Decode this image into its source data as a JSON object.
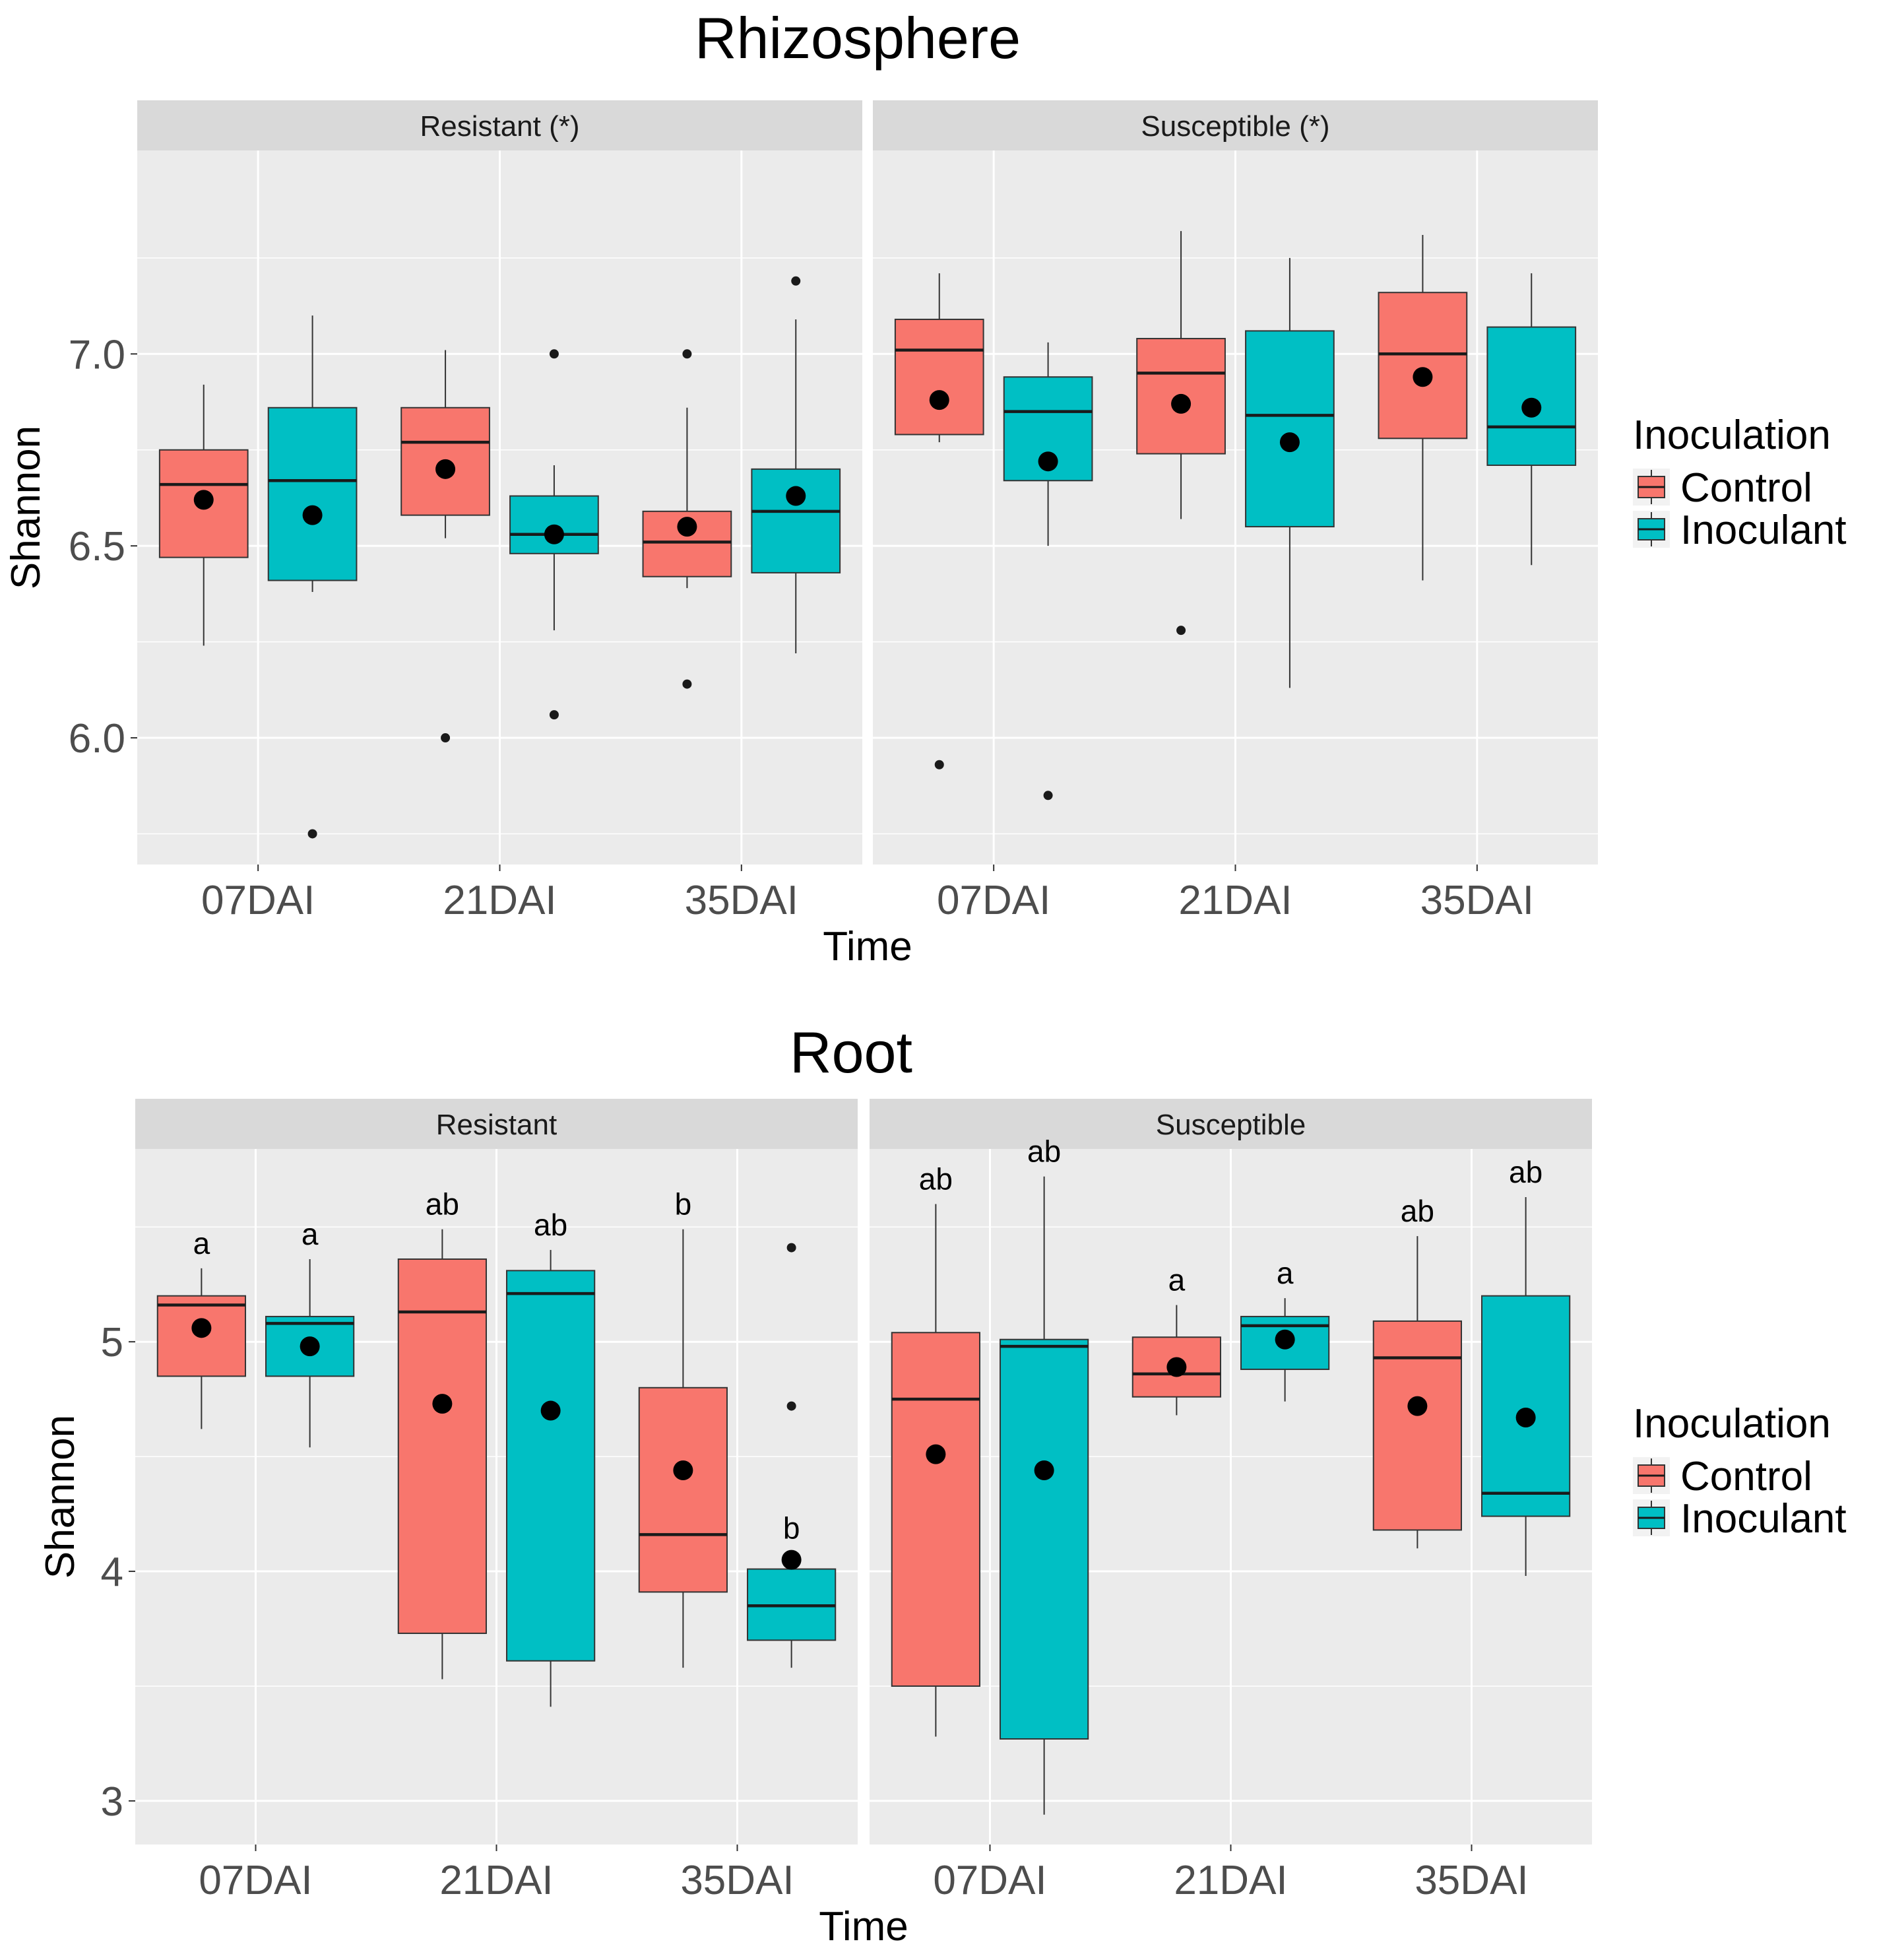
{
  "colors": {
    "Control": "#F8766D",
    "Inoculant": "#00BFC4",
    "panel_bg": "#EBEBEB",
    "strip_bg": "#D9D9D9"
  },
  "legend": {
    "title": "Inoculation",
    "items": [
      "Control",
      "Inoculant"
    ]
  },
  "chart_data": [
    {
      "type": "box",
      "title": "Rhizosphere",
      "xlabel": "Time",
      "ylabel": "Shannon",
      "categories": [
        "07DAI",
        "21DAI",
        "35DAI"
      ],
      "ylim": [
        5.67,
        7.53
      ],
      "yticks": [
        "6.0",
        "6.5",
        "7.0"
      ],
      "facets": [
        {
          "label": "Resistant (*)",
          "boxes": [
            {
              "time": "07DAI",
              "group": "Control",
              "whisker_low": 6.24,
              "q1": 6.47,
              "median": 6.66,
              "q3": 6.75,
              "whisker_high": 6.92,
              "mean": 6.62,
              "outliers": []
            },
            {
              "time": "07DAI",
              "group": "Inoculant",
              "whisker_low": 6.38,
              "q1": 6.41,
              "median": 6.67,
              "q3": 6.86,
              "whisker_high": 7.1,
              "mean": 6.58,
              "outliers": [
                5.75
              ]
            },
            {
              "time": "21DAI",
              "group": "Control",
              "whisker_low": 6.52,
              "q1": 6.58,
              "median": 6.77,
              "q3": 6.86,
              "whisker_high": 7.01,
              "mean": 6.7,
              "outliers": [
                6.0
              ]
            },
            {
              "time": "21DAI",
              "group": "Inoculant",
              "whisker_low": 6.28,
              "q1": 6.48,
              "median": 6.53,
              "q3": 6.63,
              "whisker_high": 6.71,
              "mean": 6.53,
              "outliers": [
                7.0,
                6.06
              ]
            },
            {
              "time": "35DAI",
              "group": "Control",
              "whisker_low": 6.39,
              "q1": 6.42,
              "median": 6.51,
              "q3": 6.59,
              "whisker_high": 6.86,
              "mean": 6.55,
              "outliers": [
                7.0,
                6.14
              ]
            },
            {
              "time": "35DAI",
              "group": "Inoculant",
              "whisker_low": 6.22,
              "q1": 6.43,
              "median": 6.59,
              "q3": 6.7,
              "whisker_high": 7.09,
              "mean": 6.63,
              "outliers": [
                7.19
              ]
            }
          ]
        },
        {
          "label": "Susceptible (*)",
          "boxes": [
            {
              "time": "07DAI",
              "group": "Control",
              "whisker_low": 6.77,
              "q1": 6.79,
              "median": 7.01,
              "q3": 7.09,
              "whisker_high": 7.21,
              "mean": 6.88,
              "outliers": [
                5.93
              ]
            },
            {
              "time": "07DAI",
              "group": "Inoculant",
              "whisker_low": 6.5,
              "q1": 6.67,
              "median": 6.85,
              "q3": 6.94,
              "whisker_high": 7.03,
              "mean": 6.72,
              "outliers": [
                5.85
              ]
            },
            {
              "time": "21DAI",
              "group": "Control",
              "whisker_low": 6.57,
              "q1": 6.74,
              "median": 6.95,
              "q3": 7.04,
              "whisker_high": 7.32,
              "mean": 6.87,
              "outliers": [
                6.28
              ]
            },
            {
              "time": "21DAI",
              "group": "Inoculant",
              "whisker_low": 6.13,
              "q1": 6.55,
              "median": 6.84,
              "q3": 7.06,
              "whisker_high": 7.25,
              "mean": 6.77,
              "outliers": []
            },
            {
              "time": "35DAI",
              "group": "Control",
              "whisker_low": 6.41,
              "q1": 6.78,
              "median": 7.0,
              "q3": 7.16,
              "whisker_high": 7.31,
              "mean": 6.94,
              "outliers": []
            },
            {
              "time": "35DAI",
              "group": "Inoculant",
              "whisker_low": 6.45,
              "q1": 6.71,
              "median": 6.81,
              "q3": 7.07,
              "whisker_high": 7.21,
              "mean": 6.86,
              "outliers": []
            }
          ]
        }
      ]
    },
    {
      "type": "box",
      "title": "Root",
      "xlabel": "Time",
      "ylabel": "Shannon",
      "categories": [
        "07DAI",
        "21DAI",
        "35DAI"
      ],
      "ylim": [
        2.81,
        5.84
      ],
      "yticks": [
        "3",
        "4",
        "5"
      ],
      "facets": [
        {
          "label": "Resistant",
          "boxes": [
            {
              "time": "07DAI",
              "group": "Control",
              "whisker_low": 4.62,
              "q1": 4.85,
              "median": 5.16,
              "q3": 5.2,
              "whisker_high": 5.32,
              "mean": 5.06,
              "outliers": [],
              "letter": "a"
            },
            {
              "time": "07DAI",
              "group": "Inoculant",
              "whisker_low": 4.54,
              "q1": 4.85,
              "median": 5.08,
              "q3": 5.11,
              "whisker_high": 5.36,
              "mean": 4.98,
              "outliers": [],
              "letter": "a"
            },
            {
              "time": "21DAI",
              "group": "Control",
              "whisker_low": 3.53,
              "q1": 3.73,
              "median": 5.13,
              "q3": 5.36,
              "whisker_high": 5.49,
              "mean": 4.73,
              "outliers": [],
              "letter": "ab"
            },
            {
              "time": "21DAI",
              "group": "Inoculant",
              "whisker_low": 3.41,
              "q1": 3.61,
              "median": 5.21,
              "q3": 5.31,
              "whisker_high": 5.4,
              "mean": 4.7,
              "outliers": [],
              "letter": "ab"
            },
            {
              "time": "35DAI",
              "group": "Control",
              "whisker_low": 3.58,
              "q1": 3.91,
              "median": 4.16,
              "q3": 4.8,
              "whisker_high": 5.49,
              "mean": 4.44,
              "outliers": [],
              "letter": "b"
            },
            {
              "time": "35DAI",
              "group": "Inoculant",
              "whisker_low": 3.58,
              "q1": 3.7,
              "median": 3.85,
              "q3": 4.01,
              "whisker_high": 4.04,
              "mean": 4.05,
              "outliers": [
                5.41,
                4.72
              ],
              "letter": "b"
            }
          ]
        },
        {
          "label": "Susceptible",
          "boxes": [
            {
              "time": "07DAI",
              "group": "Control",
              "whisker_low": 3.28,
              "q1": 3.5,
              "median": 4.75,
              "q3": 5.04,
              "whisker_high": 5.6,
              "mean": 4.51,
              "outliers": [],
              "letter": "ab"
            },
            {
              "time": "07DAI",
              "group": "Inoculant",
              "whisker_low": 2.94,
              "q1": 3.27,
              "median": 4.98,
              "q3": 5.01,
              "whisker_high": 5.72,
              "mean": 4.44,
              "outliers": [],
              "letter": "ab"
            },
            {
              "time": "21DAI",
              "group": "Control",
              "whisker_low": 4.68,
              "q1": 4.76,
              "median": 4.86,
              "q3": 5.02,
              "whisker_high": 5.16,
              "mean": 4.89,
              "outliers": [],
              "letter": "a"
            },
            {
              "time": "21DAI",
              "group": "Inoculant",
              "whisker_low": 4.74,
              "q1": 4.88,
              "median": 5.07,
              "q3": 5.11,
              "whisker_high": 5.19,
              "mean": 5.01,
              "outliers": [],
              "letter": "a"
            },
            {
              "time": "35DAI",
              "group": "Control",
              "whisker_low": 4.1,
              "q1": 4.18,
              "median": 4.93,
              "q3": 5.09,
              "whisker_high": 5.46,
              "mean": 4.72,
              "outliers": [],
              "letter": "ab"
            },
            {
              "time": "35DAI",
              "group": "Inoculant",
              "whisker_low": 3.98,
              "q1": 4.24,
              "median": 4.34,
              "q3": 5.2,
              "whisker_high": 5.63,
              "mean": 4.67,
              "outliers": [],
              "letter": "ab"
            }
          ]
        }
      ]
    }
  ]
}
